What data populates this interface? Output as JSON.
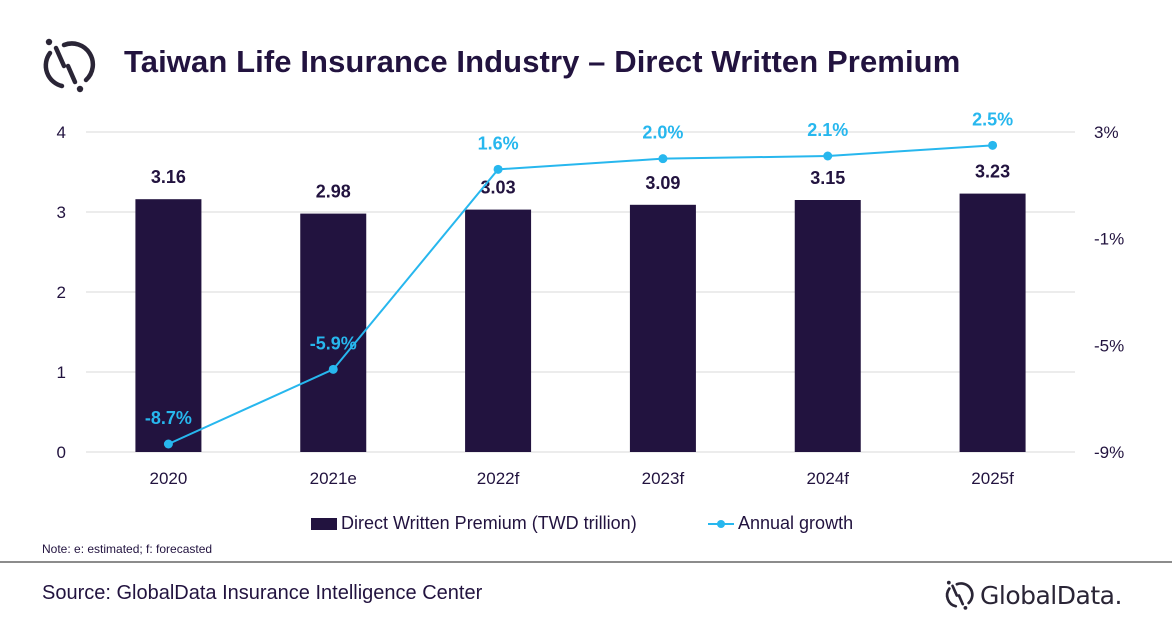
{
  "header": {
    "title": "Taiwan Life Insurance Industry – Direct Written Premium",
    "logo_icon": "globaldata-logo-icon"
  },
  "chart_data": {
    "type": "bar",
    "title": "Taiwan Life Insurance Industry – Direct Written Premium",
    "categories": [
      "2020",
      "2021e",
      "2022f",
      "2023f",
      "2024f",
      "2025f"
    ],
    "series": [
      {
        "name": "Direct Written Premium (TWD trillion)",
        "type": "bar",
        "axis": "left",
        "values": [
          3.16,
          2.98,
          3.03,
          3.09,
          3.15,
          3.23
        ],
        "labels": [
          "3.16",
          "2.98",
          "3.03",
          "3.09",
          "3.15",
          "3.23"
        ],
        "color": "#22133f"
      },
      {
        "name": "Annual growth",
        "type": "line",
        "axis": "right",
        "values": [
          -8.7,
          -5.9,
          1.6,
          2.0,
          2.1,
          2.5
        ],
        "labels": [
          "-8.7%",
          "-5.9%",
          "1.6%",
          "2.0%",
          "2.1%",
          "2.5%"
        ],
        "color": "#27b7ee"
      }
    ],
    "left_axis": {
      "ylim": [
        0,
        4
      ],
      "ticks": [
        "0",
        "1",
        "2",
        "3",
        "4"
      ],
      "tick_values": [
        0,
        1,
        2,
        3,
        4
      ]
    },
    "right_axis": {
      "ylim": [
        -9,
        3
      ],
      "ticks": [
        "-9%",
        "-5%",
        "-1%",
        "3%"
      ],
      "tick_values": [
        -9,
        -5,
        -1,
        3
      ]
    },
    "xlabel": "",
    "ylabel": "",
    "grid": true,
    "legend_position": "bottom"
  },
  "legend": {
    "items": [
      {
        "label": "Direct Written Premium (TWD trillion)",
        "swatch": "bar"
      },
      {
        "label": "Annual growth",
        "swatch": "line-marker"
      }
    ]
  },
  "footer": {
    "note": "Note: e: estimated; f: forecasted",
    "source": "Source: GlobalData Insurance Intelligence Center",
    "brand_name": "GlobalData."
  }
}
